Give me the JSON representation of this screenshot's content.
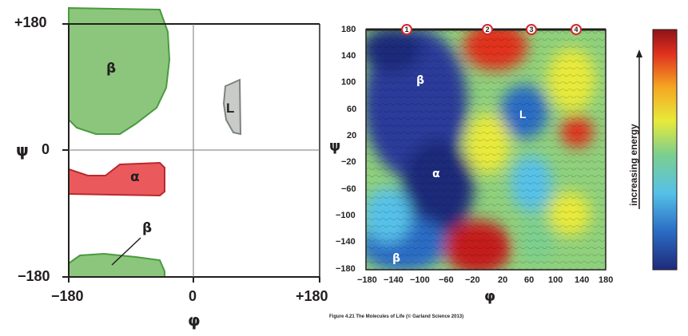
{
  "left_plot": {
    "y_ticks": [
      "+180",
      "0",
      "−180"
    ],
    "x_ticks": [
      "−180",
      "0",
      "+180"
    ],
    "x_axis_label": "φ",
    "y_axis_label": "ψ",
    "regions": [
      {
        "label": "β",
        "color": "#8cc67c"
      },
      {
        "label": "L",
        "color": "#c8ccc9"
      },
      {
        "label": "α",
        "color": "#ea5a5c"
      },
      {
        "label": "β",
        "color": "#8cc67c"
      }
    ]
  },
  "right_plot": {
    "x_ticks": [
      "−180",
      "−140",
      "−100",
      "−60",
      "−20",
      "20",
      "60",
      "100",
      "140",
      "180"
    ],
    "y_ticks": [
      "180",
      "140",
      "100",
      "60",
      "20",
      "−20",
      "−60",
      "−100",
      "−140",
      "−180"
    ],
    "x_axis_label": "φ",
    "y_axis_label": "ψ",
    "map_labels": [
      "β",
      "L",
      "α",
      "β"
    ],
    "markers": [
      "1",
      "2",
      "3",
      "4"
    ]
  },
  "colorbar": {
    "label": "increasing energy",
    "colors": [
      "#1f2a7a",
      "#2b6cc4",
      "#56c1e8",
      "#7ccf8e",
      "#e8ea3a",
      "#f5a623",
      "#e0301e",
      "#8e1317"
    ]
  },
  "caption": "Figure 4.21 The Molecules of Life (© Garland Science 2013)"
}
